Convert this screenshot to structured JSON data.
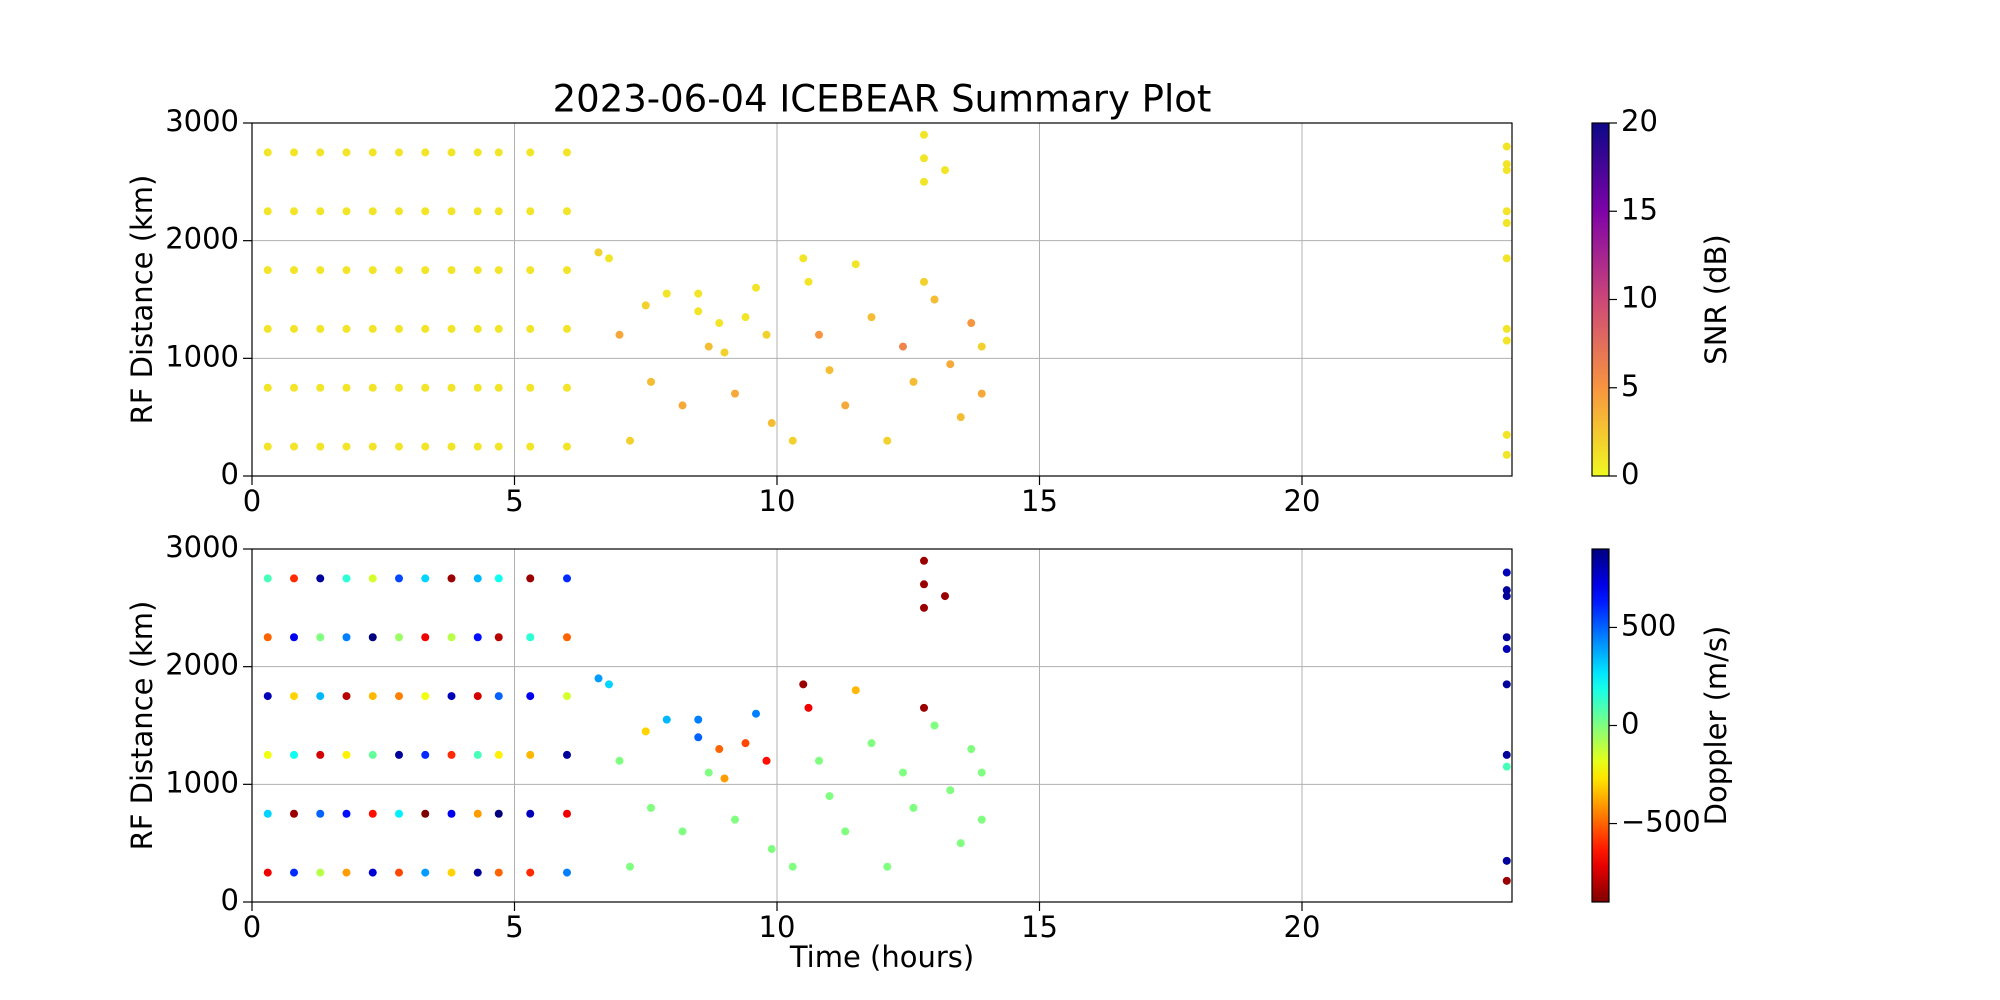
{
  "chart_data": [
    {
      "type": "scatter",
      "title": "2023-06-04 ICEBEAR Summary Plot",
      "ylabel": "RF Distance (km)",
      "xlim": [
        0,
        24
      ],
      "xticks": [
        0,
        5,
        10,
        15,
        20
      ],
      "ylim": [
        0,
        3000
      ],
      "yticks": [
        0,
        1000,
        2000,
        3000
      ],
      "grid": true,
      "colormap": "plasma_r",
      "clim": [
        0,
        20
      ],
      "cticks": [
        0,
        5,
        10,
        15,
        20
      ],
      "clabel": "SNR (dB)",
      "x": [
        0.3,
        0.3,
        0.3,
        0.3,
        0.3,
        0.3,
        0.8,
        0.8,
        0.8,
        0.8,
        0.8,
        0.8,
        1.3,
        1.3,
        1.3,
        1.3,
        1.3,
        1.3,
        1.8,
        1.8,
        1.8,
        1.8,
        1.8,
        1.8,
        2.3,
        2.3,
        2.3,
        2.3,
        2.3,
        2.3,
        2.8,
        2.8,
        2.8,
        2.8,
        2.8,
        2.8,
        3.3,
        3.3,
        3.3,
        3.3,
        3.3,
        3.3,
        3.8,
        3.8,
        3.8,
        3.8,
        3.8,
        3.8,
        4.3,
        4.3,
        4.3,
        4.3,
        4.3,
        4.3,
        4.7,
        4.7,
        4.7,
        4.7,
        4.7,
        4.7,
        5.3,
        5.3,
        5.3,
        5.3,
        5.3,
        5.3,
        6.0,
        6.0,
        6.0,
        6.0,
        6.0,
        6.0,
        6.6,
        6.8,
        7.0,
        7.2,
        7.5,
        7.6,
        7.9,
        8.2,
        8.5,
        8.5,
        8.7,
        8.9,
        9.0,
        9.2,
        9.4,
        9.6,
        9.8,
        9.9,
        10.3,
        10.5,
        10.6,
        10.8,
        11.0,
        11.3,
        11.5,
        11.8,
        12.1,
        12.4,
        12.6,
        12.8,
        12.8,
        12.8,
        12.8,
        13.0,
        13.2,
        13.3,
        13.5,
        13.7,
        13.9,
        13.9,
        23.9,
        23.9,
        23.9,
        23.9,
        23.9,
        23.9,
        23.9,
        23.9,
        23.9,
        23.9
      ],
      "y": [
        250,
        750,
        1250,
        1750,
        2250,
        2750,
        250,
        750,
        1250,
        1750,
        2250,
        2750,
        250,
        750,
        1250,
        1750,
        2250,
        2750,
        250,
        750,
        1250,
        1750,
        2250,
        2750,
        250,
        750,
        1250,
        1750,
        2250,
        2750,
        250,
        750,
        1250,
        1750,
        2250,
        2750,
        250,
        750,
        1250,
        1750,
        2250,
        2750,
        250,
        750,
        1250,
        1750,
        2250,
        2750,
        250,
        750,
        1250,
        1750,
        2250,
        2750,
        250,
        750,
        1250,
        1750,
        2250,
        2750,
        250,
        750,
        1250,
        1750,
        2250,
        2750,
        250,
        750,
        1250,
        1750,
        2250,
        2750,
        1900,
        1850,
        1200,
        300,
        1450,
        800,
        1550,
        600,
        1400,
        1550,
        1100,
        1300,
        1050,
        700,
        1350,
        1600,
        1200,
        450,
        300,
        1850,
        1650,
        1200,
        900,
        600,
        1800,
        1350,
        300,
        1100,
        800,
        2900,
        2700,
        2500,
        1650,
        1500,
        2600,
        950,
        500,
        1300,
        1100,
        700,
        2800,
        2650,
        2600,
        2250,
        2150,
        1850,
        1250,
        1150,
        350,
        180
      ],
      "c": [
        1,
        1,
        1,
        1,
        1,
        1,
        1,
        1,
        1,
        1,
        1,
        1,
        1,
        1,
        1,
        1,
        1,
        1,
        1,
        1,
        1,
        1,
        1,
        1,
        1,
        1,
        1,
        1,
        1,
        1,
        1,
        1,
        1,
        1,
        1,
        1,
        1,
        1,
        1,
        1,
        1,
        1,
        1,
        1,
        1,
        1,
        1,
        1,
        1,
        1,
        1,
        1,
        1,
        1,
        1,
        1,
        1,
        1,
        1,
        1,
        1,
        1,
        1,
        1,
        1,
        1,
        1,
        1,
        1,
        1,
        1,
        1,
        2,
        1,
        4,
        2,
        2,
        3,
        1,
        4,
        1,
        1,
        3,
        1,
        2,
        4,
        1,
        1,
        2,
        3,
        2,
        1,
        1,
        5,
        3,
        4,
        1,
        3,
        2,
        6,
        3,
        1,
        1,
        1,
        2,
        3,
        1,
        4,
        3,
        5,
        2,
        4,
        1,
        1,
        1,
        1,
        1,
        1,
        1,
        1,
        1,
        1
      ]
    },
    {
      "type": "scatter",
      "ylabel": "RF Distance (km)",
      "xlabel": "Time (hours)",
      "xlim": [
        0,
        24
      ],
      "xticks": [
        0,
        5,
        10,
        15,
        20
      ],
      "ylim": [
        0,
        3000
      ],
      "yticks": [
        0,
        1000,
        2000,
        3000
      ],
      "grid": true,
      "colormap": "jet_r",
      "clim": [
        -900,
        900
      ],
      "cticks": [
        {
          "value": -500,
          "label": "−500"
        },
        0,
        500
      ],
      "clabel": "Doppler (m/s)",
      "x": [
        0.3,
        0.3,
        0.3,
        0.3,
        0.3,
        0.3,
        0.8,
        0.8,
        0.8,
        0.8,
        0.8,
        0.8,
        1.3,
        1.3,
        1.3,
        1.3,
        1.3,
        1.3,
        1.8,
        1.8,
        1.8,
        1.8,
        1.8,
        1.8,
        2.3,
        2.3,
        2.3,
        2.3,
        2.3,
        2.3,
        2.8,
        2.8,
        2.8,
        2.8,
        2.8,
        2.8,
        3.3,
        3.3,
        3.3,
        3.3,
        3.3,
        3.3,
        3.8,
        3.8,
        3.8,
        3.8,
        3.8,
        3.8,
        4.3,
        4.3,
        4.3,
        4.3,
        4.3,
        4.3,
        4.7,
        4.7,
        4.7,
        4.7,
        4.7,
        4.7,
        5.3,
        5.3,
        5.3,
        5.3,
        5.3,
        5.3,
        6.0,
        6.0,
        6.0,
        6.0,
        6.0,
        6.0,
        6.6,
        6.8,
        7.0,
        7.2,
        7.5,
        7.6,
        7.9,
        8.2,
        8.5,
        8.5,
        8.7,
        8.9,
        9.0,
        9.2,
        9.4,
        9.6,
        9.8,
        9.9,
        10.3,
        10.5,
        10.6,
        10.8,
        11.0,
        11.3,
        11.5,
        11.8,
        12.1,
        12.4,
        12.6,
        12.8,
        12.8,
        12.8,
        12.8,
        13.0,
        13.2,
        13.3,
        13.5,
        13.7,
        13.9,
        13.9,
        23.9,
        23.9,
        23.9,
        23.9,
        23.9,
        23.9,
        23.9,
        23.9,
        23.9,
        23.9
      ],
      "y": [
        250,
        750,
        1250,
        1750,
        2250,
        2750,
        250,
        750,
        1250,
        1750,
        2250,
        2750,
        250,
        750,
        1250,
        1750,
        2250,
        2750,
        250,
        750,
        1250,
        1750,
        2250,
        2750,
        250,
        750,
        1250,
        1750,
        2250,
        2750,
        250,
        750,
        1250,
        1750,
        2250,
        2750,
        250,
        750,
        1250,
        1750,
        2250,
        2750,
        250,
        750,
        1250,
        1750,
        2250,
        2750,
        250,
        750,
        1250,
        1750,
        2250,
        2750,
        250,
        750,
        1250,
        1750,
        2250,
        2750,
        250,
        750,
        1250,
        1750,
        2250,
        2750,
        250,
        750,
        1250,
        1750,
        2250,
        2750,
        1900,
        1850,
        1200,
        300,
        1450,
        800,
        1550,
        600,
        1400,
        1550,
        1100,
        1300,
        1050,
        700,
        1350,
        1600,
        1200,
        450,
        300,
        1850,
        1650,
        1200,
        900,
        600,
        1800,
        1350,
        300,
        1100,
        800,
        2900,
        2700,
        2500,
        1650,
        1500,
        2600,
        950,
        500,
        1300,
        1100,
        700,
        2800,
        2650,
        2600,
        2250,
        2150,
        1850,
        1250,
        1150,
        350,
        180
      ],
      "c": [
        -700,
        300,
        -200,
        800,
        -500,
        100,
        600,
        -850,
        200,
        -300,
        700,
        -600,
        -100,
        500,
        -750,
        350,
        0,
        850,
        -400,
        650,
        -250,
        -800,
        450,
        150,
        750,
        -650,
        50,
        -350,
        900,
        -150,
        -550,
        250,
        850,
        -450,
        -50,
        550,
        400,
        -900,
        600,
        -200,
        -700,
        300,
        -300,
        700,
        -600,
        800,
        -100,
        -850,
        850,
        -400,
        100,
        -750,
        650,
        350,
        -500,
        900,
        -250,
        500,
        -800,
        200,
        -600,
        800,
        -350,
        700,
        150,
        -850,
        450,
        -700,
        850,
        -150,
        -500,
        600,
        400,
        300,
        0,
        0,
        -300,
        0,
        350,
        0,
        500,
        450,
        0,
        -500,
        -400,
        0,
        -550,
        450,
        -650,
        0,
        0,
        -850,
        -700,
        0,
        0,
        0,
        -350,
        0,
        0,
        0,
        0,
        -850,
        -850,
        -850,
        -850,
        0,
        -850,
        0,
        0,
        0,
        0,
        0,
        800,
        850,
        850,
        850,
        800,
        850,
        850,
        100,
        850,
        -850
      ]
    }
  ]
}
